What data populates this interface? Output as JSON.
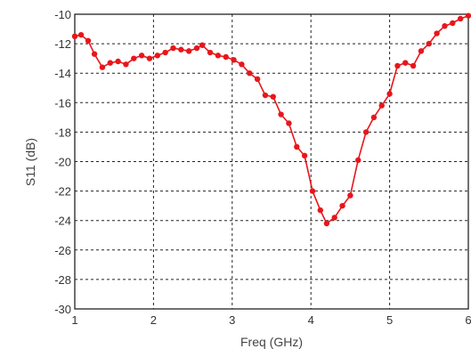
{
  "chart_data": {
    "type": "line",
    "title": "",
    "xlabel": "Freq (GHz)",
    "ylabel": "S11 (dB)",
    "xlim": [
      1,
      6
    ],
    "ylim": [
      -30,
      -10
    ],
    "grid": true,
    "xticks": [
      1,
      2,
      3,
      4,
      5,
      6
    ],
    "yticks": [
      -10,
      -12,
      -14,
      -16,
      -18,
      -20,
      -22,
      -24,
      -26,
      -28,
      -30
    ],
    "series": [
      {
        "color": "#e8161b",
        "marker": "circle",
        "points": [
          [
            1.0,
            -11.5
          ],
          [
            1.08,
            -11.4
          ],
          [
            1.17,
            -11.8
          ],
          [
            1.25,
            -12.7
          ],
          [
            1.35,
            -13.6
          ],
          [
            1.45,
            -13.3
          ],
          [
            1.55,
            -13.2
          ],
          [
            1.65,
            -13.4
          ],
          [
            1.75,
            -13.0
          ],
          [
            1.85,
            -12.8
          ],
          [
            1.95,
            -13.0
          ],
          [
            2.05,
            -12.8
          ],
          [
            2.15,
            -12.6
          ],
          [
            2.25,
            -12.3
          ],
          [
            2.35,
            -12.4
          ],
          [
            2.45,
            -12.5
          ],
          [
            2.55,
            -12.3
          ],
          [
            2.62,
            -12.1
          ],
          [
            2.72,
            -12.6
          ],
          [
            2.82,
            -12.8
          ],
          [
            2.92,
            -12.9
          ],
          [
            3.02,
            -13.1
          ],
          [
            3.12,
            -13.4
          ],
          [
            3.22,
            -14.0
          ],
          [
            3.32,
            -14.4
          ],
          [
            3.42,
            -15.5
          ],
          [
            3.52,
            -15.6
          ],
          [
            3.62,
            -16.8
          ],
          [
            3.72,
            -17.4
          ],
          [
            3.82,
            -19.0
          ],
          [
            3.92,
            -19.6
          ],
          [
            4.02,
            -22.0
          ],
          [
            4.12,
            -23.3
          ],
          [
            4.2,
            -24.2
          ],
          [
            4.3,
            -23.8
          ],
          [
            4.4,
            -23.0
          ],
          [
            4.5,
            -22.3
          ],
          [
            4.6,
            -19.9
          ],
          [
            4.7,
            -18.0
          ],
          [
            4.8,
            -17.0
          ],
          [
            4.9,
            -16.2
          ],
          [
            5.0,
            -15.4
          ],
          [
            5.1,
            -13.5
          ],
          [
            5.2,
            -13.3
          ],
          [
            5.3,
            -13.5
          ],
          [
            5.4,
            -12.5
          ],
          [
            5.5,
            -12.0
          ],
          [
            5.6,
            -11.3
          ],
          [
            5.7,
            -10.8
          ],
          [
            5.8,
            -10.6
          ],
          [
            5.9,
            -10.3
          ],
          [
            6.0,
            -10.1
          ]
        ]
      }
    ]
  }
}
